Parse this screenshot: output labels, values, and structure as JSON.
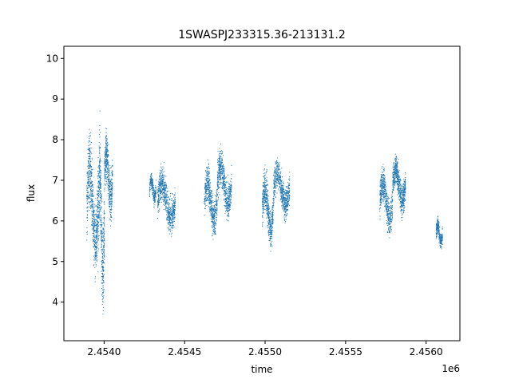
{
  "chart_data": {
    "type": "scatter",
    "title": "1SWASPJ233315.36-213131.2",
    "xlabel": "time",
    "ylabel": "flux",
    "x_offset_label": "1e6",
    "xlim": [
      2.45375,
      2.45621
    ],
    "ylim": [
      3.05,
      10.3
    ],
    "x_ticks": [
      2.454,
      2.4545,
      2.455,
      2.4555,
      2.456
    ],
    "x_tick_labels": [
      "2.4540",
      "2.4545",
      "2.4550",
      "2.4555",
      "2.4560"
    ],
    "y_ticks": [
      4,
      5,
      6,
      7,
      8,
      9,
      10
    ],
    "y_tick_labels": [
      "4",
      "5",
      "6",
      "7",
      "8",
      "9",
      "10"
    ],
    "grid": false,
    "marker_color": "#1f77b4",
    "series": [
      {
        "values_description": "dense clusters of points",
        "clusters": [
          {
            "x_start": 2.45389,
            "x_end": 2.45396,
            "y_center": 6.4,
            "y_spread": 2.4,
            "count": 700
          },
          {
            "x_start": 2.45396,
            "x_end": 2.454,
            "y_center": 6.0,
            "y_spread": 3.2,
            "count": 500
          },
          {
            "x_start": 2.454,
            "x_end": 2.45405,
            "y_center": 7.1,
            "y_spread": 1.6,
            "count": 500
          },
          {
            "x_start": 2.45428,
            "x_end": 2.45432,
            "y_center": 6.8,
            "y_spread": 0.6,
            "count": 250
          },
          {
            "x_start": 2.45433,
            "x_end": 2.45444,
            "y_center": 6.5,
            "y_spread": 1.2,
            "count": 700
          },
          {
            "x_start": 2.45462,
            "x_end": 2.4547,
            "y_center": 6.5,
            "y_spread": 1.3,
            "count": 550
          },
          {
            "x_start": 2.4547,
            "x_end": 2.45479,
            "y_center": 6.9,
            "y_spread": 1.3,
            "count": 600
          },
          {
            "x_start": 2.45498,
            "x_end": 2.45505,
            "y_center": 6.3,
            "y_spread": 1.4,
            "count": 550
          },
          {
            "x_start": 2.45505,
            "x_end": 2.45515,
            "y_center": 6.8,
            "y_spread": 1.1,
            "count": 650
          },
          {
            "x_start": 2.45571,
            "x_end": 2.45579,
            "y_center": 6.5,
            "y_spread": 1.2,
            "count": 550
          },
          {
            "x_start": 2.45579,
            "x_end": 2.45587,
            "y_center": 6.9,
            "y_spread": 1.1,
            "count": 650
          },
          {
            "x_start": 2.45606,
            "x_end": 2.4561,
            "y_center": 5.7,
            "y_spread": 0.6,
            "count": 250
          }
        ]
      }
    ]
  }
}
